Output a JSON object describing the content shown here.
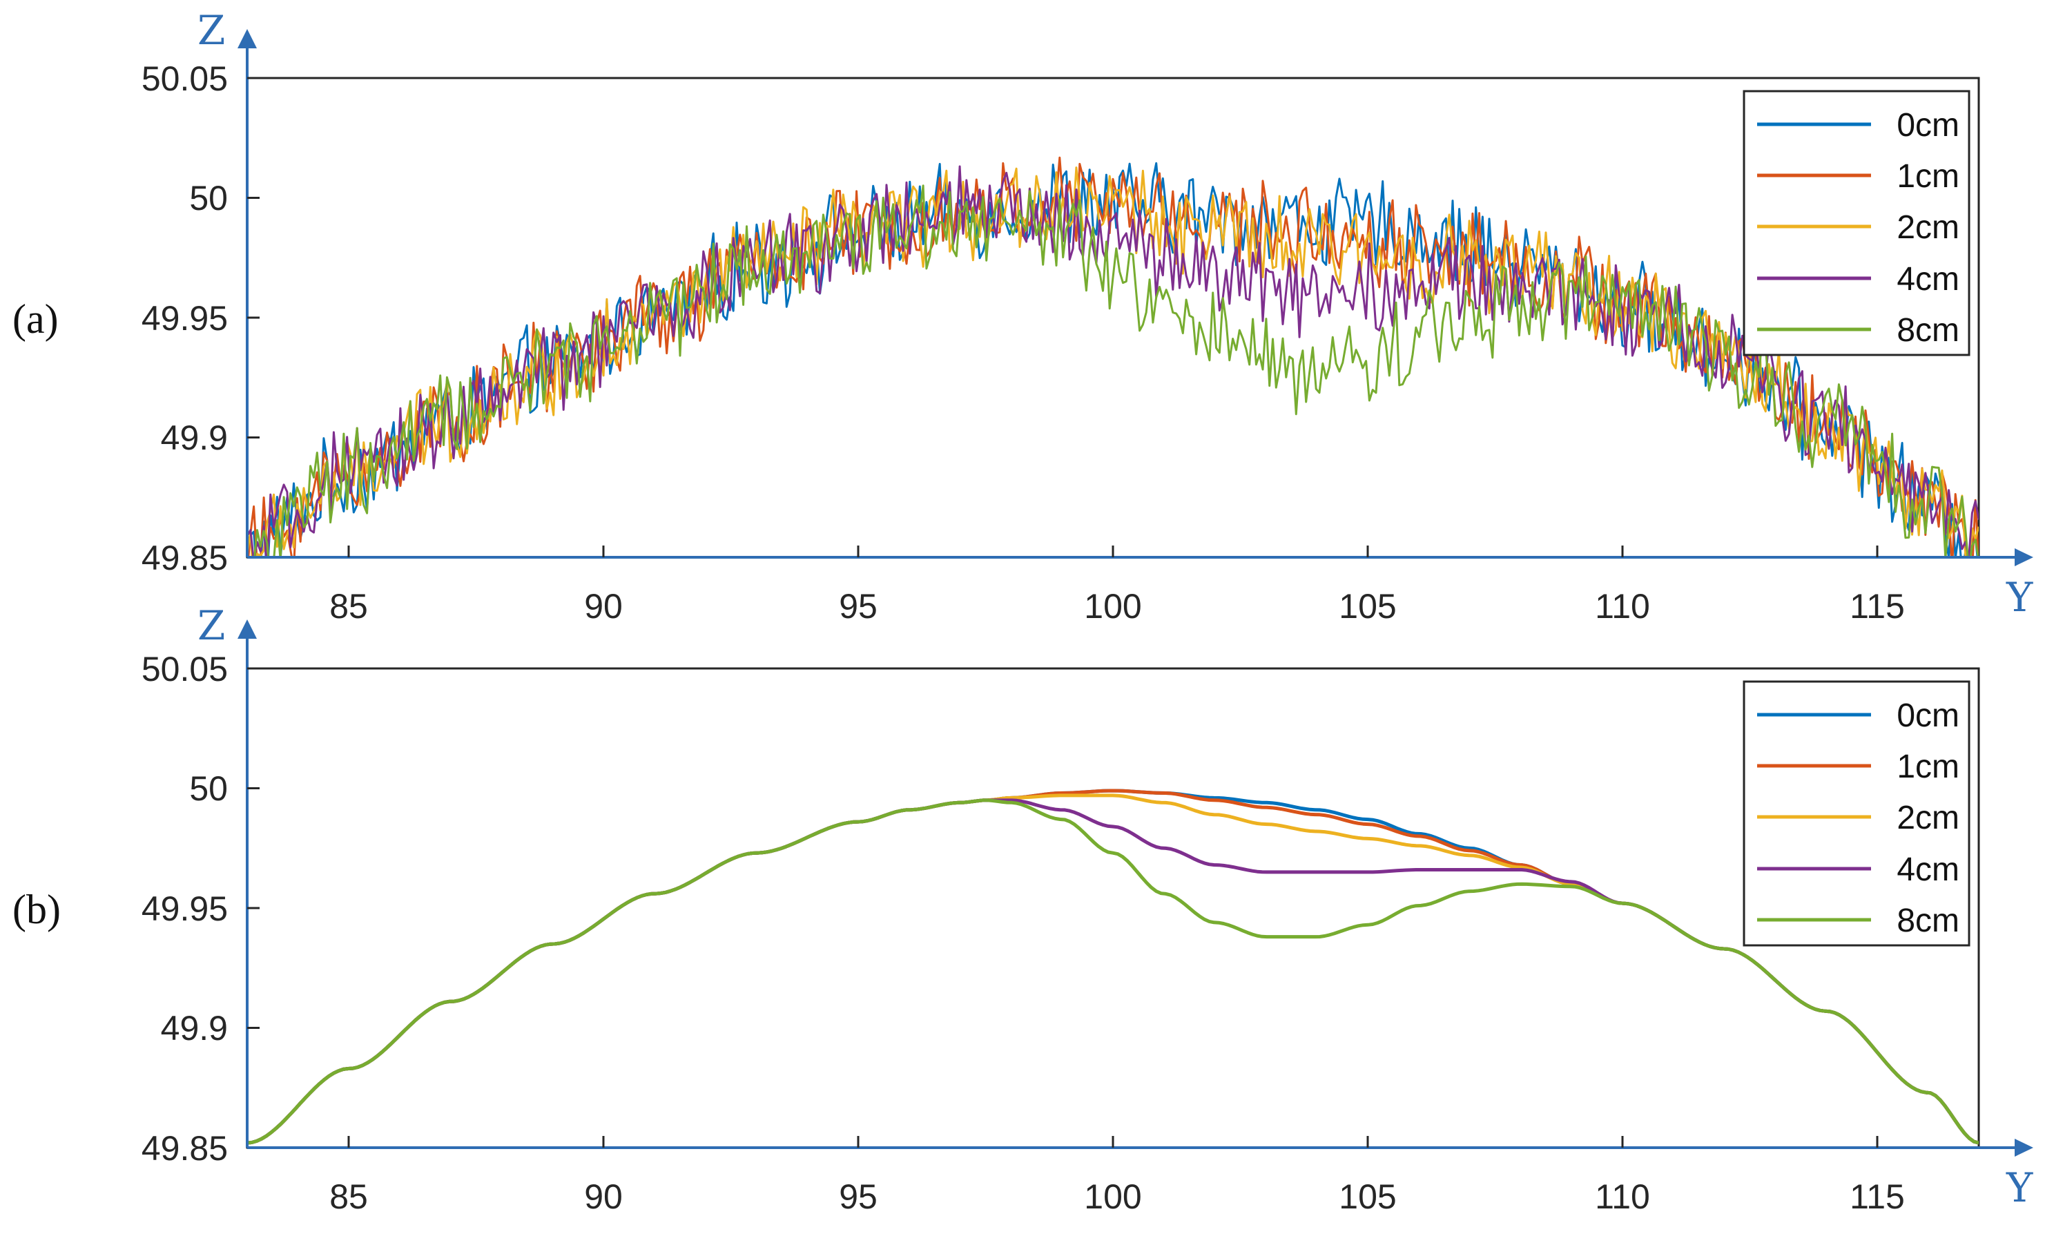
{
  "chart_data": [
    {
      "type": "line",
      "panel_label": "(a)",
      "title": "",
      "xlabel": "Y",
      "ylabel": "Z",
      "xlim": [
        83,
        117
      ],
      "ylim": [
        49.85,
        50.05
      ],
      "xticks": [
        85,
        90,
        95,
        100,
        105,
        110,
        115
      ],
      "yticks": [
        49.85,
        49.9,
        49.95,
        50,
        50.05
      ],
      "ytick_labels": [
        "49.85",
        "49.9",
        "49.95",
        "50",
        "50.05"
      ],
      "grid": false,
      "legend_position": "top-right",
      "noisy": true,
      "x": [
        83,
        85,
        87,
        89,
        91,
        93,
        95,
        97,
        98,
        99,
        100,
        101,
        102,
        103,
        104,
        105,
        106,
        107,
        108,
        109,
        110,
        112,
        114,
        116,
        117
      ],
      "series": [
        {
          "name": "0cm",
          "color": "#0072bd",
          "values": [
            49.853,
            49.883,
            49.908,
            49.929,
            49.951,
            49.972,
            49.985,
            49.993,
            49.996,
            49.998,
            49.998,
            49.995,
            49.992,
            49.991,
            49.99,
            49.988,
            49.985,
            49.98,
            49.973,
            49.966,
            49.955,
            49.935,
            49.906,
            49.873,
            49.857
          ]
        },
        {
          "name": "1cm",
          "color": "#d95319",
          "values": [
            49.853,
            49.883,
            49.908,
            49.929,
            49.951,
            49.972,
            49.985,
            49.993,
            49.996,
            49.998,
            49.998,
            49.994,
            49.99,
            49.987,
            49.985,
            49.983,
            49.98,
            49.976,
            49.971,
            49.965,
            49.955,
            49.935,
            49.906,
            49.873,
            49.857
          ]
        },
        {
          "name": "2cm",
          "color": "#edb120",
          "values": [
            49.853,
            49.883,
            49.908,
            49.929,
            49.951,
            49.972,
            49.985,
            49.993,
            49.996,
            49.998,
            49.997,
            49.991,
            49.985,
            49.98,
            49.978,
            49.977,
            49.976,
            49.973,
            49.969,
            49.964,
            49.955,
            49.935,
            49.906,
            49.873,
            49.857
          ]
        },
        {
          "name": "4cm",
          "color": "#7e2f8e",
          "values": [
            49.853,
            49.883,
            49.908,
            49.929,
            49.951,
            49.972,
            49.985,
            49.993,
            49.994,
            49.991,
            49.985,
            49.976,
            49.968,
            49.963,
            49.962,
            49.963,
            49.964,
            49.964,
            49.963,
            49.96,
            49.955,
            49.935,
            49.906,
            49.873,
            49.857
          ]
        },
        {
          "name": "8cm",
          "color": "#77ac30",
          "values": [
            49.853,
            49.883,
            49.908,
            49.929,
            49.951,
            49.972,
            49.985,
            49.992,
            49.991,
            49.983,
            49.968,
            49.952,
            49.941,
            49.932,
            49.928,
            49.932,
            49.942,
            49.952,
            49.958,
            49.959,
            49.955,
            49.935,
            49.906,
            49.873,
            49.857
          ]
        }
      ]
    },
    {
      "type": "line",
      "panel_label": "(b)",
      "title": "",
      "xlabel": "Y",
      "ylabel": "Z",
      "xlim": [
        83,
        117
      ],
      "ylim": [
        49.85,
        50.05
      ],
      "xticks": [
        85,
        90,
        95,
        100,
        105,
        110,
        115
      ],
      "yticks": [
        49.85,
        49.9,
        49.95,
        50,
        50.05
      ],
      "ytick_labels": [
        "49.85",
        "49.9",
        "49.95",
        "50",
        "50.05"
      ],
      "grid": false,
      "legend_position": "top-right",
      "noisy": false,
      "x": [
        83,
        85,
        87,
        89,
        91,
        93,
        95,
        96,
        97,
        97.5,
        98,
        99,
        100,
        101,
        102,
        103,
        104,
        105,
        106,
        107,
        108,
        109,
        110,
        112,
        114,
        116,
        117
      ],
      "series": [
        {
          "name": "0cm",
          "color": "#0072bd",
          "values": [
            49.852,
            49.883,
            49.911,
            49.935,
            49.956,
            49.973,
            49.986,
            49.991,
            49.994,
            49.995,
            49.996,
            49.998,
            49.999,
            49.998,
            49.996,
            49.994,
            49.991,
            49.987,
            49.981,
            49.975,
            49.968,
            49.96,
            49.952,
            49.933,
            49.907,
            49.873,
            49.852
          ]
        },
        {
          "name": "1cm",
          "color": "#d95319",
          "values": [
            49.852,
            49.883,
            49.911,
            49.935,
            49.956,
            49.973,
            49.986,
            49.991,
            49.994,
            49.995,
            49.996,
            49.998,
            49.999,
            49.998,
            49.995,
            49.992,
            49.989,
            49.985,
            49.98,
            49.974,
            49.968,
            49.96,
            49.952,
            49.933,
            49.907,
            49.873,
            49.852
          ]
        },
        {
          "name": "2cm",
          "color": "#edb120",
          "values": [
            49.852,
            49.883,
            49.911,
            49.935,
            49.956,
            49.973,
            49.986,
            49.991,
            49.994,
            49.995,
            49.996,
            49.997,
            49.997,
            49.994,
            49.989,
            49.985,
            49.982,
            49.979,
            49.976,
            49.972,
            49.967,
            49.96,
            49.952,
            49.933,
            49.907,
            49.873,
            49.852
          ]
        },
        {
          "name": "4cm",
          "color": "#7e2f8e",
          "values": [
            49.852,
            49.883,
            49.911,
            49.935,
            49.956,
            49.973,
            49.986,
            49.991,
            49.994,
            49.995,
            49.995,
            49.991,
            49.984,
            49.975,
            49.968,
            49.965,
            49.965,
            49.965,
            49.966,
            49.966,
            49.966,
            49.961,
            49.952,
            49.933,
            49.907,
            49.873,
            49.852
          ]
        },
        {
          "name": "8cm",
          "color": "#77ac30",
          "values": [
            49.852,
            49.883,
            49.911,
            49.935,
            49.956,
            49.973,
            49.986,
            49.991,
            49.994,
            49.995,
            49.994,
            49.987,
            49.973,
            49.956,
            49.944,
            49.938,
            49.938,
            49.943,
            49.951,
            49.957,
            49.96,
            49.959,
            49.952,
            49.933,
            49.907,
            49.873,
            49.852
          ]
        }
      ]
    }
  ]
}
